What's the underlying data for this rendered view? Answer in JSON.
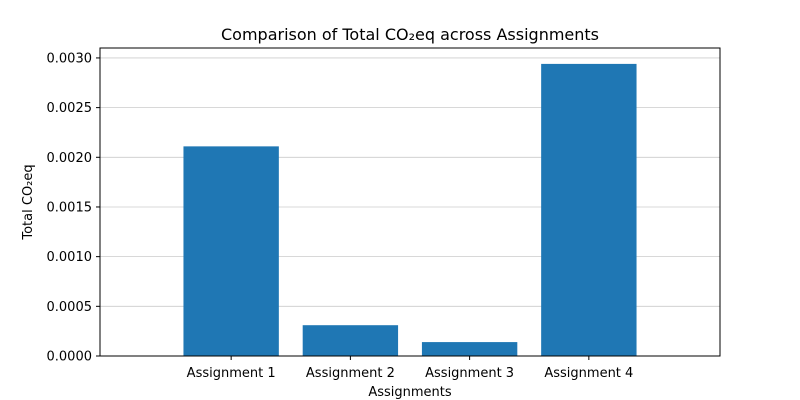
{
  "chart_data": {
    "type": "bar",
    "title": "Comparison of Total CO₂eq across Assignments",
    "xlabel": "Assignments",
    "ylabel": "Total CO₂eq",
    "categories": [
      "Assignment 1",
      "Assignment 2",
      "Assignment 3",
      "Assignment 4"
    ],
    "values": [
      0.00211,
      0.00031,
      0.00014,
      0.00294
    ],
    "ylim": [
      0,
      0.0031
    ],
    "yticks": [
      0.0,
      0.0005,
      0.001,
      0.0015,
      0.002,
      0.0025,
      0.003
    ],
    "ytick_labels": [
      "0.0000",
      "0.0005",
      "0.0010",
      "0.0015",
      "0.0020",
      "0.0025",
      "0.0030"
    ],
    "grid": "horizontal",
    "legend": "none",
    "bar_color": "#1f77b4",
    "grid_color": "#cccccc"
  }
}
